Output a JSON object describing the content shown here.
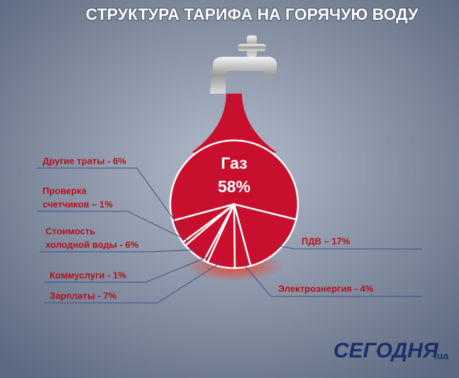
{
  "chart_data": {
    "type": "pie",
    "title": "СТРУКТУРА ТАРИФА НА ГОРЯЧУЮ ВОДУ",
    "labels": [
      [
        "Газ",
        "58%"
      ],
      [
        "ПДВ – 17%"
      ],
      [
        "Электроэнергия - 4%"
      ],
      [
        "Зарплаты - 7%"
      ],
      [
        "Коммуслуги - 1%"
      ],
      [
        "Стоимость",
        "холодной воды - 6%"
      ],
      [
        "Проверка",
        "счетчиков – 1%"
      ],
      [
        "Другие траты - 6%"
      ]
    ],
    "values": [
      58,
      17,
      4,
      7,
      1,
      6,
      1,
      6
    ],
    "color": "#c8102e"
  },
  "logo": {
    "name": "СЕГОДНЯ",
    "domain": ".ua"
  }
}
